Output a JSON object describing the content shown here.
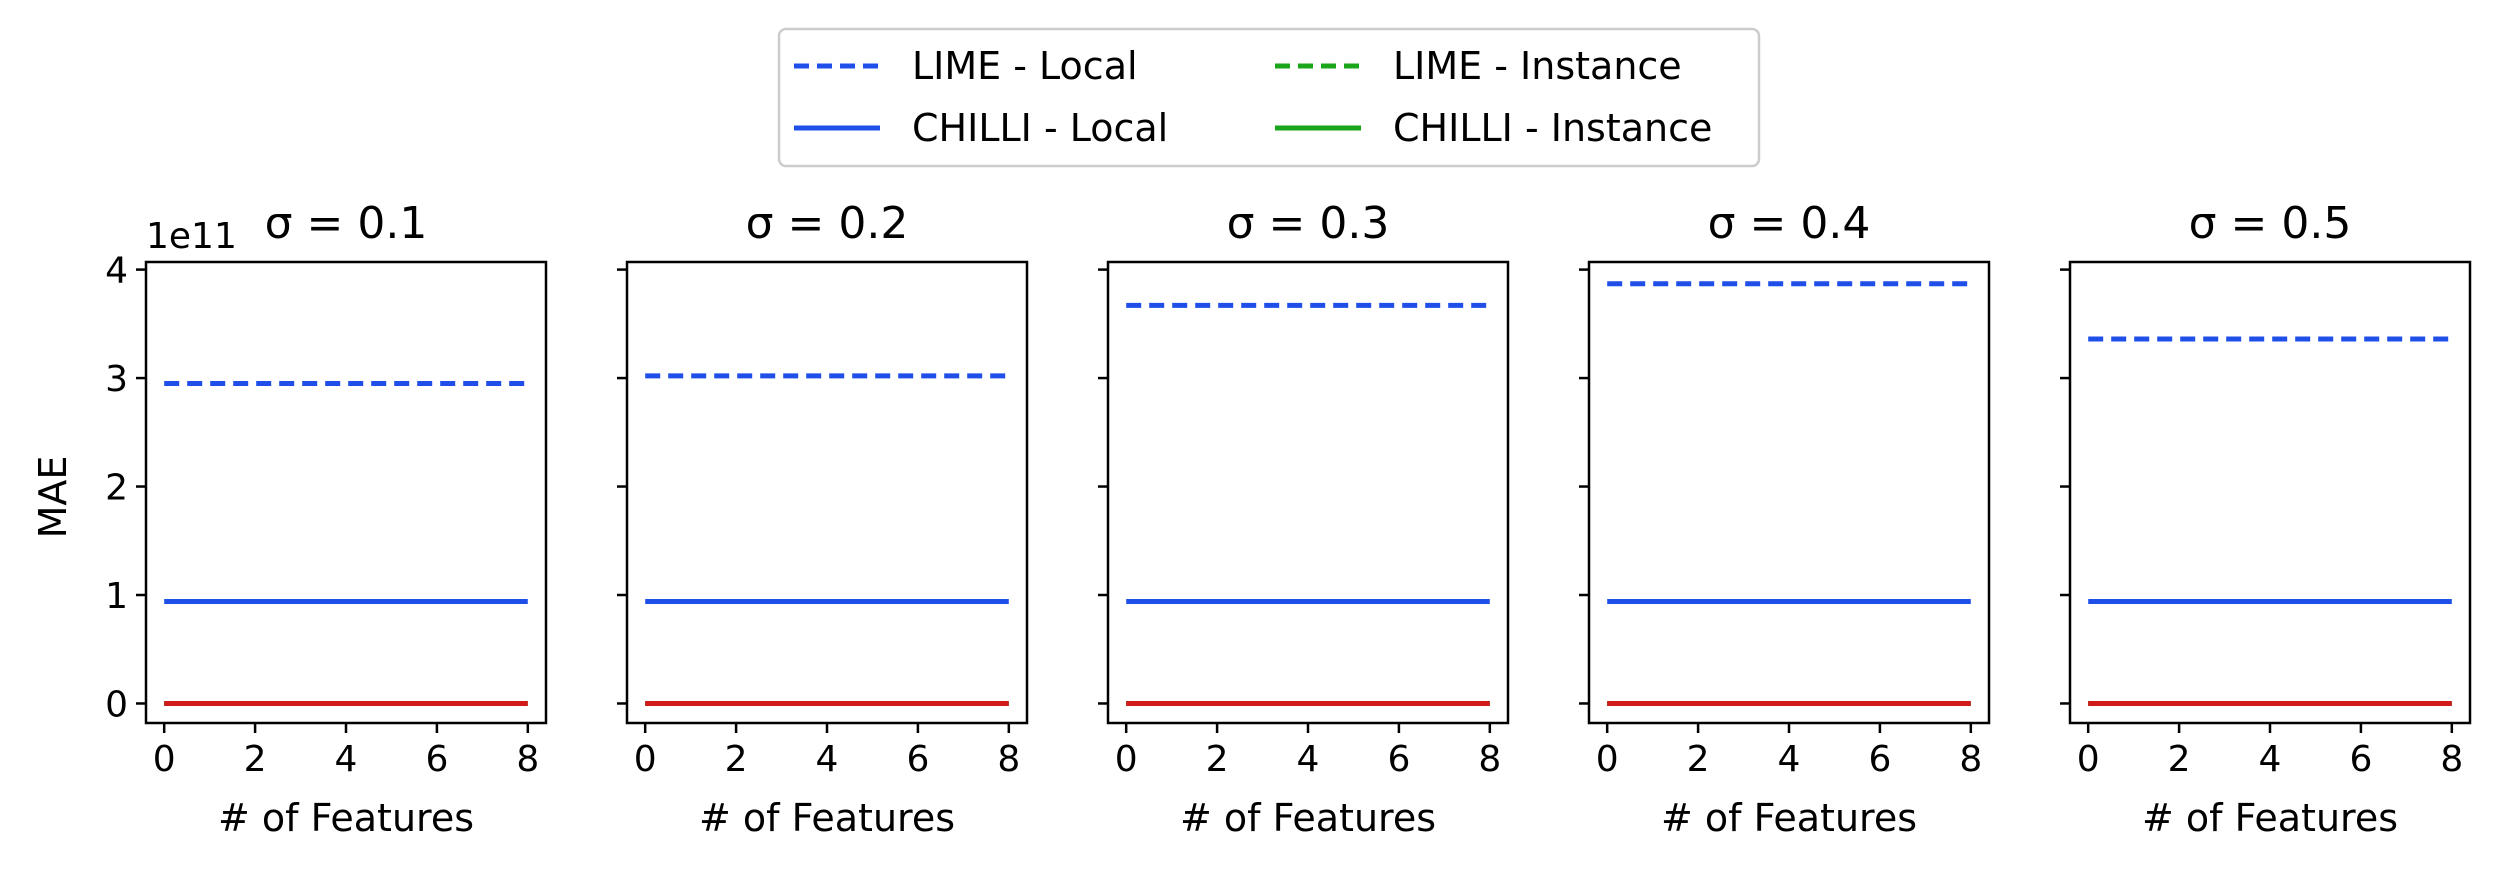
{
  "chart_data": {
    "type": "line",
    "legend": {
      "placement": "top-center",
      "entries": [
        {
          "label": "LIME - Local",
          "color": "#1f4fe8",
          "style": "dashed"
        },
        {
          "label": "LIME - Instance",
          "color": "#1aa61a",
          "style": "dashed"
        },
        {
          "label": "CHILLI - Local",
          "color": "#1f4fe8",
          "style": "solid"
        },
        {
          "label": "CHILLI - Instance",
          "color": "#1aa61a",
          "style": "solid"
        }
      ]
    },
    "ylabel": "MAE",
    "xlabel": "# of Features",
    "y_offset_label": "1e11",
    "ylim": [
      -0.18,
      4.07
    ],
    "xlim": [
      -0.4,
      8.4
    ],
    "yticks": [
      "0",
      "1",
      "2",
      "3",
      "4"
    ],
    "xticks": [
      "0",
      "2",
      "4",
      "6",
      "8"
    ],
    "grid": false,
    "panels": [
      {
        "title": "σ = 0.1",
        "series": [
          {
            "name": "LIME - Local",
            "color": "#1f4fe8",
            "style": "dashed",
            "x": [
              0,
              1,
              2,
              3,
              4,
              5,
              6,
              7,
              8
            ],
            "y": [
              2.95,
              2.95,
              2.95,
              2.95,
              2.95,
              2.95,
              2.95,
              2.95,
              2.95
            ]
          },
          {
            "name": "CHILLI - Local",
            "color": "#1f4fe8",
            "style": "solid",
            "x": [
              0,
              1,
              2,
              3,
              4,
              5,
              6,
              7,
              8
            ],
            "y": [
              0.94,
              0.94,
              0.94,
              0.94,
              0.94,
              0.94,
              0.94,
              0.94,
              0.94
            ]
          },
          {
            "name": "LIME - Instance",
            "color": "#1aa61a",
            "style": "dashed",
            "x": [
              0,
              1,
              2,
              3,
              4,
              5,
              6,
              7,
              8
            ],
            "y": [
              0,
              0,
              0,
              0,
              0,
              0,
              0,
              0,
              0
            ]
          },
          {
            "name": "CHILLI - Instance",
            "color": "#1aa61a",
            "style": "solid",
            "x": [
              0,
              1,
              2,
              3,
              4,
              5,
              6,
              7,
              8
            ],
            "y": [
              0,
              0,
              0,
              0,
              0,
              0,
              0,
              0,
              0
            ]
          },
          {
            "color": "#d11a1a",
            "style": "solid",
            "x": [
              0,
              1,
              2,
              3,
              4,
              5,
              6,
              7,
              8
            ],
            "y": [
              0,
              0,
              0,
              0,
              0,
              0,
              0,
              0,
              0
            ]
          }
        ]
      },
      {
        "title": "σ = 0.2",
        "series": [
          {
            "name": "LIME - Local",
            "color": "#1f4fe8",
            "style": "dashed",
            "x": [
              0,
              1,
              2,
              3,
              4,
              5,
              6,
              7,
              8
            ],
            "y": [
              3.02,
              3.02,
              3.02,
              3.02,
              3.02,
              3.02,
              3.02,
              3.02,
              3.02
            ]
          },
          {
            "name": "CHILLI - Local",
            "color": "#1f4fe8",
            "style": "solid",
            "x": [
              0,
              1,
              2,
              3,
              4,
              5,
              6,
              7,
              8
            ],
            "y": [
              0.94,
              0.94,
              0.94,
              0.94,
              0.94,
              0.94,
              0.94,
              0.94,
              0.94
            ]
          },
          {
            "name": "LIME - Instance",
            "color": "#1aa61a",
            "style": "dashed",
            "x": [
              0,
              1,
              2,
              3,
              4,
              5,
              6,
              7,
              8
            ],
            "y": [
              0,
              0,
              0,
              0,
              0,
              0,
              0,
              0,
              0
            ]
          },
          {
            "name": "CHILLI - Instance",
            "color": "#1aa61a",
            "style": "solid",
            "x": [
              0,
              1,
              2,
              3,
              4,
              5,
              6,
              7,
              8
            ],
            "y": [
              0,
              0,
              0,
              0,
              0,
              0,
              0,
              0,
              0
            ]
          },
          {
            "color": "#d11a1a",
            "style": "solid",
            "x": [
              0,
              1,
              2,
              3,
              4,
              5,
              6,
              7,
              8
            ],
            "y": [
              0,
              0,
              0,
              0,
              0,
              0,
              0,
              0,
              0
            ]
          }
        ]
      },
      {
        "title": "σ = 0.3",
        "series": [
          {
            "name": "LIME - Local",
            "color": "#1f4fe8",
            "style": "dashed",
            "x": [
              0,
              1,
              2,
              3,
              4,
              5,
              6,
              7,
              8
            ],
            "y": [
              3.67,
              3.67,
              3.67,
              3.67,
              3.67,
              3.67,
              3.67,
              3.67,
              3.67
            ]
          },
          {
            "name": "CHILLI - Local",
            "color": "#1f4fe8",
            "style": "solid",
            "x": [
              0,
              1,
              2,
              3,
              4,
              5,
              6,
              7,
              8
            ],
            "y": [
              0.94,
              0.94,
              0.94,
              0.94,
              0.94,
              0.94,
              0.94,
              0.94,
              0.94
            ]
          },
          {
            "name": "LIME - Instance",
            "color": "#1aa61a",
            "style": "dashed",
            "x": [
              0,
              1,
              2,
              3,
              4,
              5,
              6,
              7,
              8
            ],
            "y": [
              0,
              0,
              0,
              0,
              0,
              0,
              0,
              0,
              0
            ]
          },
          {
            "name": "CHILLI - Instance",
            "color": "#1aa61a",
            "style": "solid",
            "x": [
              0,
              1,
              2,
              3,
              4,
              5,
              6,
              7,
              8
            ],
            "y": [
              0,
              0,
              0,
              0,
              0,
              0,
              0,
              0,
              0
            ]
          },
          {
            "color": "#d11a1a",
            "style": "solid",
            "x": [
              0,
              1,
              2,
              3,
              4,
              5,
              6,
              7,
              8
            ],
            "y": [
              0,
              0,
              0,
              0,
              0,
              0,
              0,
              0,
              0
            ]
          }
        ]
      },
      {
        "title": "σ = 0.4",
        "series": [
          {
            "name": "LIME - Local",
            "color": "#1f4fe8",
            "style": "dashed",
            "x": [
              0,
              1,
              2,
              3,
              4,
              5,
              6,
              7,
              8
            ],
            "y": [
              3.87,
              3.87,
              3.87,
              3.87,
              3.87,
              3.87,
              3.87,
              3.87,
              3.87
            ]
          },
          {
            "name": "CHILLI - Local",
            "color": "#1f4fe8",
            "style": "solid",
            "x": [
              0,
              1,
              2,
              3,
              4,
              5,
              6,
              7,
              8
            ],
            "y": [
              0.94,
              0.94,
              0.94,
              0.94,
              0.94,
              0.94,
              0.94,
              0.94,
              0.94
            ]
          },
          {
            "name": "LIME - Instance",
            "color": "#1aa61a",
            "style": "dashed",
            "x": [
              0,
              1,
              2,
              3,
              4,
              5,
              6,
              7,
              8
            ],
            "y": [
              0,
              0,
              0,
              0,
              0,
              0,
              0,
              0,
              0
            ]
          },
          {
            "name": "CHILLI - Instance",
            "color": "#1aa61a",
            "style": "solid",
            "x": [
              0,
              1,
              2,
              3,
              4,
              5,
              6,
              7,
              8
            ],
            "y": [
              0,
              0,
              0,
              0,
              0,
              0,
              0,
              0,
              0
            ]
          },
          {
            "color": "#d11a1a",
            "style": "solid",
            "x": [
              0,
              1,
              2,
              3,
              4,
              5,
              6,
              7,
              8
            ],
            "y": [
              0,
              0,
              0,
              0,
              0,
              0,
              0,
              0,
              0
            ]
          }
        ]
      },
      {
        "title": "σ = 0.5",
        "series": [
          {
            "name": "LIME - Local",
            "color": "#1f4fe8",
            "style": "dashed",
            "x": [
              0,
              1,
              2,
              3,
              4,
              5,
              6,
              7,
              8
            ],
            "y": [
              3.36,
              3.36,
              3.36,
              3.36,
              3.36,
              3.36,
              3.36,
              3.36,
              3.36
            ]
          },
          {
            "name": "CHILLI - Local",
            "color": "#1f4fe8",
            "style": "solid",
            "x": [
              0,
              1,
              2,
              3,
              4,
              5,
              6,
              7,
              8
            ],
            "y": [
              0.94,
              0.94,
              0.94,
              0.94,
              0.94,
              0.94,
              0.94,
              0.94,
              0.94
            ]
          },
          {
            "name": "LIME - Instance",
            "color": "#1aa61a",
            "style": "dashed",
            "x": [
              0,
              1,
              2,
              3,
              4,
              5,
              6,
              7,
              8
            ],
            "y": [
              0,
              0,
              0,
              0,
              0,
              0,
              0,
              0,
              0
            ]
          },
          {
            "name": "CHILLI - Instance",
            "color": "#1aa61a",
            "style": "solid",
            "x": [
              0,
              1,
              2,
              3,
              4,
              5,
              6,
              7,
              8
            ],
            "y": [
              0,
              0,
              0,
              0,
              0,
              0,
              0,
              0,
              0
            ]
          },
          {
            "color": "#d11a1a",
            "style": "solid",
            "x": [
              0,
              1,
              2,
              3,
              4,
              5,
              6,
              7,
              8
            ],
            "y": [
              0,
              0,
              0,
              0,
              0,
              0,
              0,
              0,
              0
            ]
          }
        ]
      }
    ]
  }
}
